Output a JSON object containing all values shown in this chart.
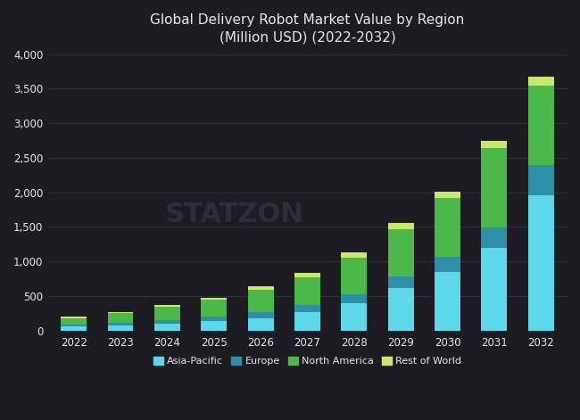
{
  "years": [
    "2022",
    "2023",
    "2024",
    "2025",
    "2026",
    "2027",
    "2028",
    "2029",
    "2030",
    "2031",
    "2032"
  ],
  "asia_pacific": [
    55,
    70,
    100,
    130,
    180,
    270,
    400,
    620,
    850,
    1200,
    1950
  ],
  "europe": [
    30,
    40,
    55,
    70,
    90,
    100,
    130,
    160,
    220,
    290,
    450
  ],
  "north_america": [
    95,
    140,
    185,
    240,
    320,
    400,
    520,
    680,
    850,
    1150,
    1150
  ],
  "rest_of_world": [
    15,
    20,
    25,
    30,
    45,
    65,
    75,
    90,
    90,
    110,
    120
  ],
  "colors": {
    "asia_pacific": "#5dd8ea",
    "europe": "#2e8fa8",
    "north_america": "#4db84a",
    "rest_of_world": "#c9e96b"
  },
  "title": "Global Delivery Robot Market Value by Region\n(Million USD) (2022-2032)",
  "ylim": [
    0,
    4000
  ],
  "yticks": [
    0,
    500,
    1000,
    1500,
    2000,
    2500,
    3000,
    3500,
    4000
  ],
  "background_color": "#1c1c22",
  "text_color": "#e8e8e8",
  "grid_color": "#353540",
  "watermark": "STATZON",
  "legend_labels": [
    "Asia-Pacific",
    "Europe",
    "North America",
    "Rest of World"
  ]
}
